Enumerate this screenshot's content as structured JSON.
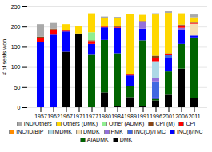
{
  "chart_data": {
    "type": "bar",
    "stacked": true,
    "categories": [
      "1957",
      "1962",
      "1967",
      "1971",
      "1977",
      "1980",
      "1984",
      "1989",
      "1991",
      "1996",
      "2001",
      "2006",
      "2011"
    ],
    "series": [
      {
        "name": "DMK",
        "color": "#000000",
        "values": [
          0,
          0,
          138,
          183,
          0,
          37,
          2,
          25,
          2,
          17,
          31,
          96,
          23
        ]
      },
      {
        "name": "AIADMK",
        "color": "#006400",
        "values": [
          0,
          0,
          0,
          0,
          130,
          130,
          132,
          27,
          164,
          4,
          58,
          61,
          150
        ]
      },
      {
        "name": "INC(I)/INC",
        "color": "#0000FF",
        "values": [
          162,
          180,
          50,
          0,
          27,
          31,
          63,
          27,
          29,
          4,
          34,
          35,
          5
        ]
      },
      {
        "name": "INC(O)/TMC",
        "color": "#4169E1",
        "values": [
          0,
          0,
          0,
          0,
          0,
          0,
          0,
          0,
          0,
          39,
          6,
          0,
          0
        ]
      },
      {
        "name": "PMK",
        "color": "#9370DB",
        "values": [
          0,
          0,
          0,
          0,
          0,
          0,
          0,
          0,
          18,
          9,
          0,
          5,
          0
        ]
      },
      {
        "name": "DMDK",
        "color": "#F5DEB3",
        "values": [
          0,
          0,
          0,
          0,
          0,
          0,
          0,
          0,
          0,
          0,
          0,
          0,
          29
        ]
      },
      {
        "name": "MDMK",
        "color": "#ADD8E6",
        "values": [
          0,
          0,
          0,
          0,
          0,
          0,
          0,
          0,
          0,
          41,
          0,
          0,
          0
        ]
      },
      {
        "name": "INC/ID/BIP",
        "color": "#FF8C00",
        "values": [
          0,
          0,
          0,
          0,
          0,
          0,
          0,
          0,
          0,
          0,
          0,
          0,
          0
        ]
      },
      {
        "name": "CPI",
        "color": "#FF0000",
        "values": [
          10,
          13,
          2,
          0,
          7,
          2,
          2,
          2,
          0,
          9,
          3,
          6,
          2
        ]
      },
      {
        "name": "CPI (M)",
        "color": "#8B4513",
        "values": [
          3,
          2,
          2,
          0,
          2,
          0,
          2,
          2,
          1,
          5,
          2,
          2,
          1
        ]
      },
      {
        "name": "Other (ADMK)",
        "color": "#90EE90",
        "values": [
          0,
          0,
          0,
          0,
          20,
          0,
          0,
          0,
          0,
          0,
          0,
          0,
          0
        ]
      },
      {
        "name": "Others (DMK)",
        "color": "#FFD700",
        "values": [
          0,
          0,
          14,
          18,
          47,
          22,
          20,
          148,
          15,
          102,
          100,
          28,
          13
        ]
      },
      {
        "name": "IND/Others",
        "color": "#A9A9A9",
        "values": [
          31,
          14,
          0,
          0,
          0,
          3,
          3,
          0,
          0,
          3,
          4,
          0,
          7
        ]
      }
    ],
    "ylabel": "# of seats won",
    "ylim": [
      0,
      250
    ],
    "yticks": [
      0,
      50,
      100,
      150,
      200,
      250
    ],
    "grid": true,
    "legend": "bottom"
  }
}
